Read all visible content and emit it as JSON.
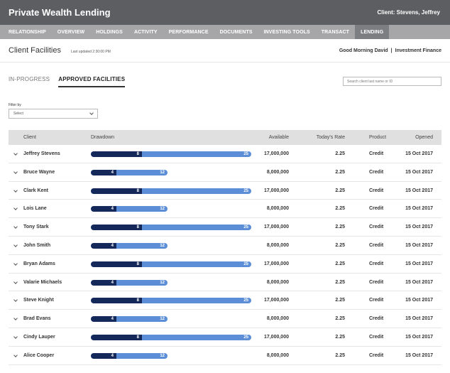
{
  "app": {
    "title": "Private Wealth Lending",
    "client": "Client: Stevens, Jeffrey"
  },
  "nav": [
    "RELATIONSHIP",
    "OVERVIEW",
    "HOLDINGS",
    "ACTIVITY",
    "PERFORMANCE",
    "DOCUMENTS",
    "INVESTING TOOLS",
    "TRANSACT",
    "LENDING"
  ],
  "nav_active": "LENDING",
  "page": {
    "title": "Client Facilities",
    "last_updated": "Last updated 2:30:00 PM",
    "greeting": "Good Morning David",
    "separator": "|",
    "department": "Investment Finance"
  },
  "tabs": {
    "in_progress": "IN-PROGRESS",
    "approved": "APPROVED FACILITIES"
  },
  "search": {
    "placeholder": "Search client last name or ID"
  },
  "filter": {
    "label": "Filter by",
    "value": "Select"
  },
  "table": {
    "headers": {
      "client": "Client",
      "drawdown": "Drawdown",
      "available": "Available",
      "rate": "Today's Rate",
      "product": "Product",
      "opened": "Opened"
    },
    "rows": [
      {
        "client": "Jeffrey Stevens",
        "used": 8,
        "total": 25,
        "available": "17,000,000",
        "rate": "2.25",
        "product": "Credit",
        "opened": "15 Oct 2017"
      },
      {
        "client": "Bruce Wayne",
        "used": 4,
        "total": 12,
        "available": "8,000,000",
        "rate": "2.25",
        "product": "Credit",
        "opened": "15 Oct 2017"
      },
      {
        "client": "Clark Kent",
        "used": 8,
        "total": 25,
        "available": "17,000,000",
        "rate": "2.25",
        "product": "Credit",
        "opened": "15 Oct 2017"
      },
      {
        "client": "Lois Lane",
        "used": 4,
        "total": 12,
        "available": "8,000,000",
        "rate": "2.25",
        "product": "Credit",
        "opened": "15 Oct 2017"
      },
      {
        "client": "Tony Stark",
        "used": 8,
        "total": 25,
        "available": "17,000,000",
        "rate": "2.25",
        "product": "Credit",
        "opened": "15 Oct 2017"
      },
      {
        "client": "John Smith",
        "used": 4,
        "total": 12,
        "available": "8,000,000",
        "rate": "2.25",
        "product": "Credit",
        "opened": "15 Oct 2017"
      },
      {
        "client": "Bryan Adams",
        "used": 8,
        "total": 25,
        "available": "17,000,000",
        "rate": "2.25",
        "product": "Credit",
        "opened": "15 Oct 2017"
      },
      {
        "client": "Valarie Michaels",
        "used": 4,
        "total": 12,
        "available": "8,000,000",
        "rate": "2.25",
        "product": "Credit",
        "opened": "15 Oct 2017"
      },
      {
        "client": "Steve Knight",
        "used": 8,
        "total": 25,
        "available": "17,000,000",
        "rate": "2.25",
        "product": "Credit",
        "opened": "15 Oct 2017"
      },
      {
        "client": "Brad Evans",
        "used": 4,
        "total": 12,
        "available": "8,000,000",
        "rate": "2.25",
        "product": "Credit",
        "opened": "15 Oct 2017"
      },
      {
        "client": "Cindy Lauper",
        "used": 8,
        "total": 25,
        "available": "17,000,000",
        "rate": "2.25",
        "product": "Credit",
        "opened": "15 Oct 2017"
      },
      {
        "client": "Alice Cooper",
        "used": 4,
        "total": 12,
        "available": "8,000,000",
        "rate": "2.25",
        "product": "Credit",
        "opened": "15 Oct 2017"
      }
    ]
  },
  "colors": {
    "topbar": "#5d5e62",
    "navbar": "#a6a6a8",
    "bar_used": "#14295a",
    "bar_total": "#5b8ed6"
  }
}
